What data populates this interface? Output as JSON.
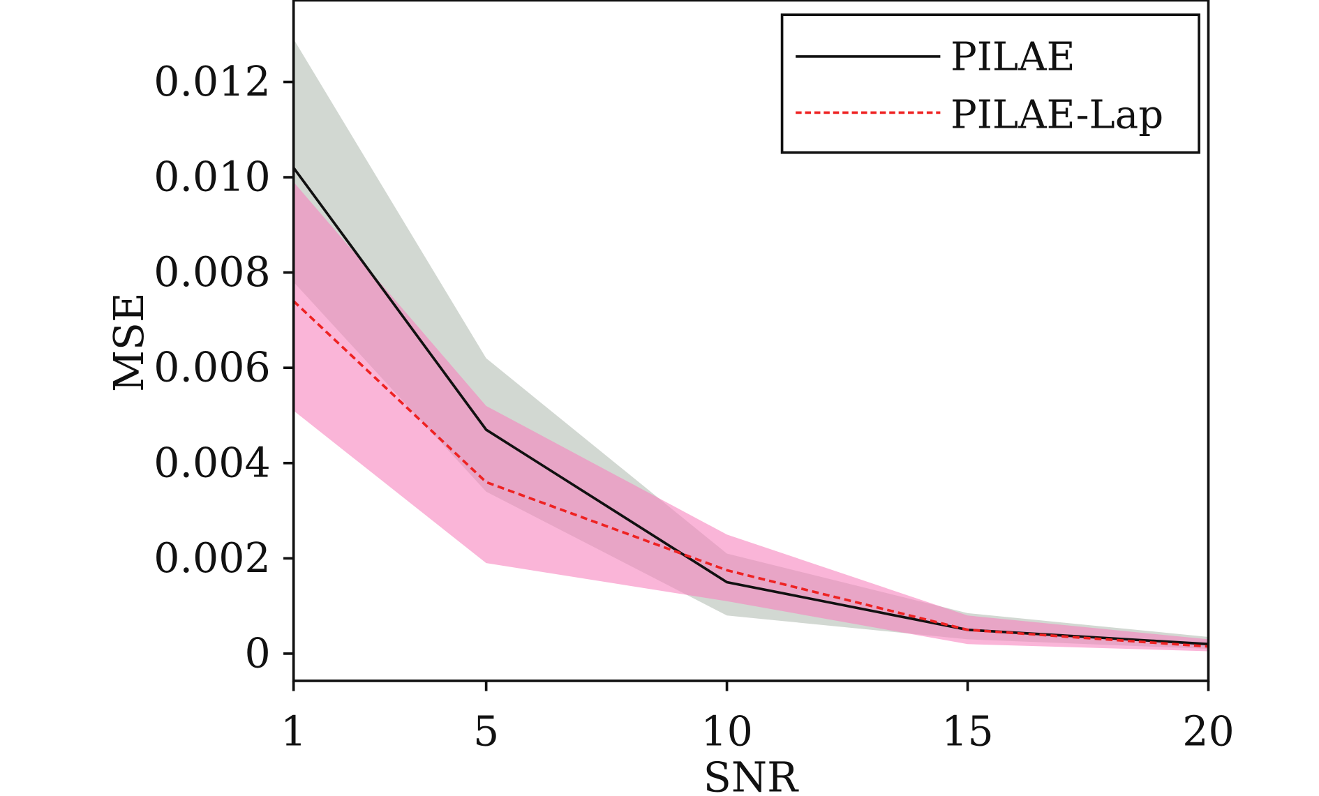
{
  "chart_data": {
    "type": "line",
    "title": "",
    "xlabel": "SNR",
    "ylabel": "MSE",
    "x": [
      1,
      5,
      10,
      15,
      20
    ],
    "xlim": [
      1,
      20
    ],
    "ylim": [
      -0.00058,
      0.0137
    ],
    "xticks": [
      1,
      5,
      10,
      15,
      20
    ],
    "xtick_labels": [
      "1",
      "5",
      "10",
      "15",
      "20"
    ],
    "yticks": [
      0,
      0.002,
      0.004,
      0.006,
      0.008,
      0.01,
      0.012
    ],
    "ytick_labels": [
      "0",
      "0.002",
      "0.004",
      "0.006",
      "0.008",
      "0.010",
      "0.012"
    ],
    "grid": false,
    "legend_position": "top-right",
    "series": [
      {
        "name": "PILAE",
        "color": "#111111",
        "style": "solid",
        "values": [
          0.0102,
          0.0047,
          0.0015,
          0.0005,
          0.0002
        ],
        "band_upper": [
          0.0129,
          0.0062,
          0.0021,
          0.00085,
          0.00035
        ],
        "band_lower": [
          0.0078,
          0.0034,
          0.0008,
          0.0003,
          0.0001
        ],
        "band_color": "#b4beb4"
      },
      {
        "name": "PILAE-Lap",
        "color": "#ee2222",
        "style": "dashed",
        "values": [
          0.0074,
          0.0036,
          0.00175,
          0.0005,
          0.00015
        ],
        "band_upper": [
          0.0099,
          0.0052,
          0.0025,
          0.0008,
          0.0003
        ],
        "band_lower": [
          0.0051,
          0.0019,
          0.0011,
          0.0002,
          5e-05
        ],
        "band_color": "#f783be"
      }
    ]
  }
}
